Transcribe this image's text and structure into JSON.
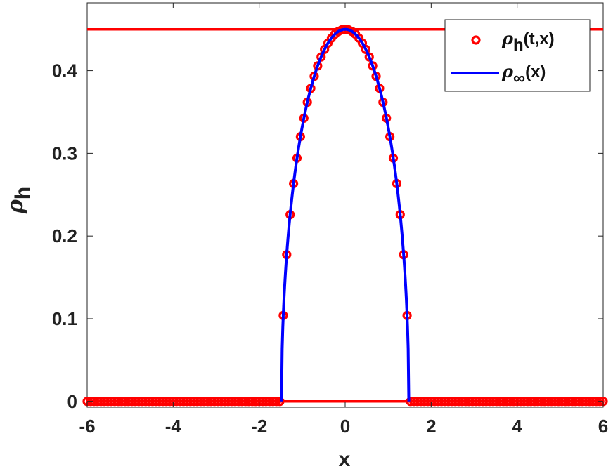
{
  "chart_data": {
    "type": "scatter",
    "title": "",
    "xlabel": "x",
    "ylabel": {
      "symbol": "ρ",
      "subscript": "h"
    },
    "xlim": [
      -6,
      6
    ],
    "ylim": [
      -0.007,
      0.482
    ],
    "xticks": [
      -6,
      -4,
      -2,
      0,
      2,
      4,
      6
    ],
    "xtick_labels": [
      "-6",
      "-4",
      "-2",
      "0",
      "2",
      "4",
      "6"
    ],
    "yticks": [
      0,
      0.1,
      0.2,
      0.3,
      0.4
    ],
    "ytick_labels": [
      "0",
      "0.1",
      "0.2",
      "0.3",
      "0.4"
    ],
    "grid": false,
    "legend_position": "top-right",
    "reference_lines": [
      {
        "orientation": "horizontal",
        "y": 0.45,
        "color": "#ff0000"
      },
      {
        "orientation": "horizontal",
        "y": 0,
        "color": "#ff0000"
      }
    ],
    "series": [
      {
        "name": {
          "symbol": "ρ",
          "subscript": "h",
          "suffix": "(t,x)"
        },
        "style": "circle-markers",
        "color": "#ff0000",
        "x_range": [
          -6,
          6
        ],
        "x_step": 0.08,
        "y_model": "0.45*(1-(x/1.48)^2)^0.5 for |x|<1.48, else 0"
      },
      {
        "name": {
          "symbol": "ρ",
          "subscript": "∞",
          "suffix": "(x)"
        },
        "style": "line",
        "color": "#0000ff",
        "x_range": [
          -1.48,
          1.48
        ],
        "y_model": "0.45*(1-(x/1.48)^2)^0.5"
      }
    ]
  }
}
